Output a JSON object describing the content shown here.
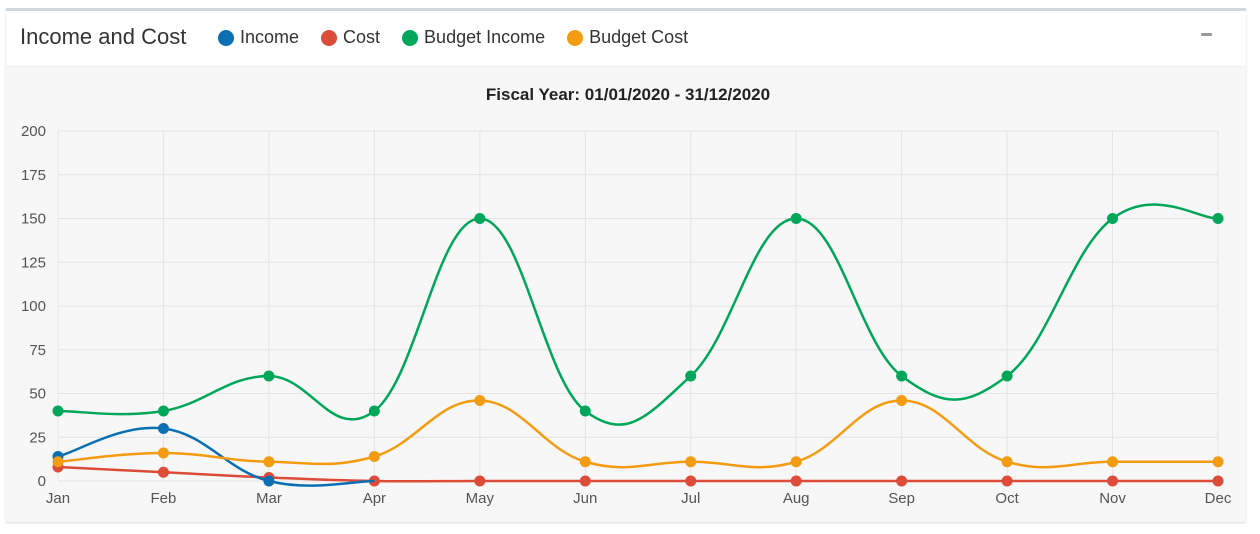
{
  "panel": {
    "title": "Income and Cost",
    "minimize_icon": "minus-icon"
  },
  "chart_data": {
    "type": "line",
    "title": "Fiscal Year: 01/01/2020 - 31/12/2020",
    "xlabel": "",
    "ylabel": "",
    "categories": [
      "Jan",
      "Feb",
      "Mar",
      "Apr",
      "May",
      "Jun",
      "Jul",
      "Aug",
      "Sep",
      "Oct",
      "Nov",
      "Dec"
    ],
    "ylim": [
      0,
      200
    ],
    "yticks": [
      0,
      25,
      50,
      75,
      100,
      125,
      150,
      175,
      200
    ],
    "grid": true,
    "legend_position": "top",
    "smooth": true,
    "series": [
      {
        "name": "Income",
        "color": "#0b6fb3",
        "values": [
          14,
          30,
          0,
          null,
          null,
          null,
          null,
          null,
          null,
          null,
          null,
          null
        ]
      },
      {
        "name": "Cost",
        "color": "#dd4b39",
        "values": [
          8,
          5,
          2,
          0,
          0,
          0,
          0,
          0,
          0,
          0,
          0,
          0
        ]
      },
      {
        "name": "Budget Income",
        "color": "#00a65a",
        "values": [
          40,
          40,
          60,
          40,
          150,
          40,
          60,
          150,
          60,
          60,
          150,
          150
        ]
      },
      {
        "name": "Budget Cost",
        "color": "#f39c12",
        "values": [
          11,
          16,
          11,
          14,
          46,
          11,
          11,
          11,
          46,
          11,
          11,
          11
        ]
      }
    ]
  }
}
